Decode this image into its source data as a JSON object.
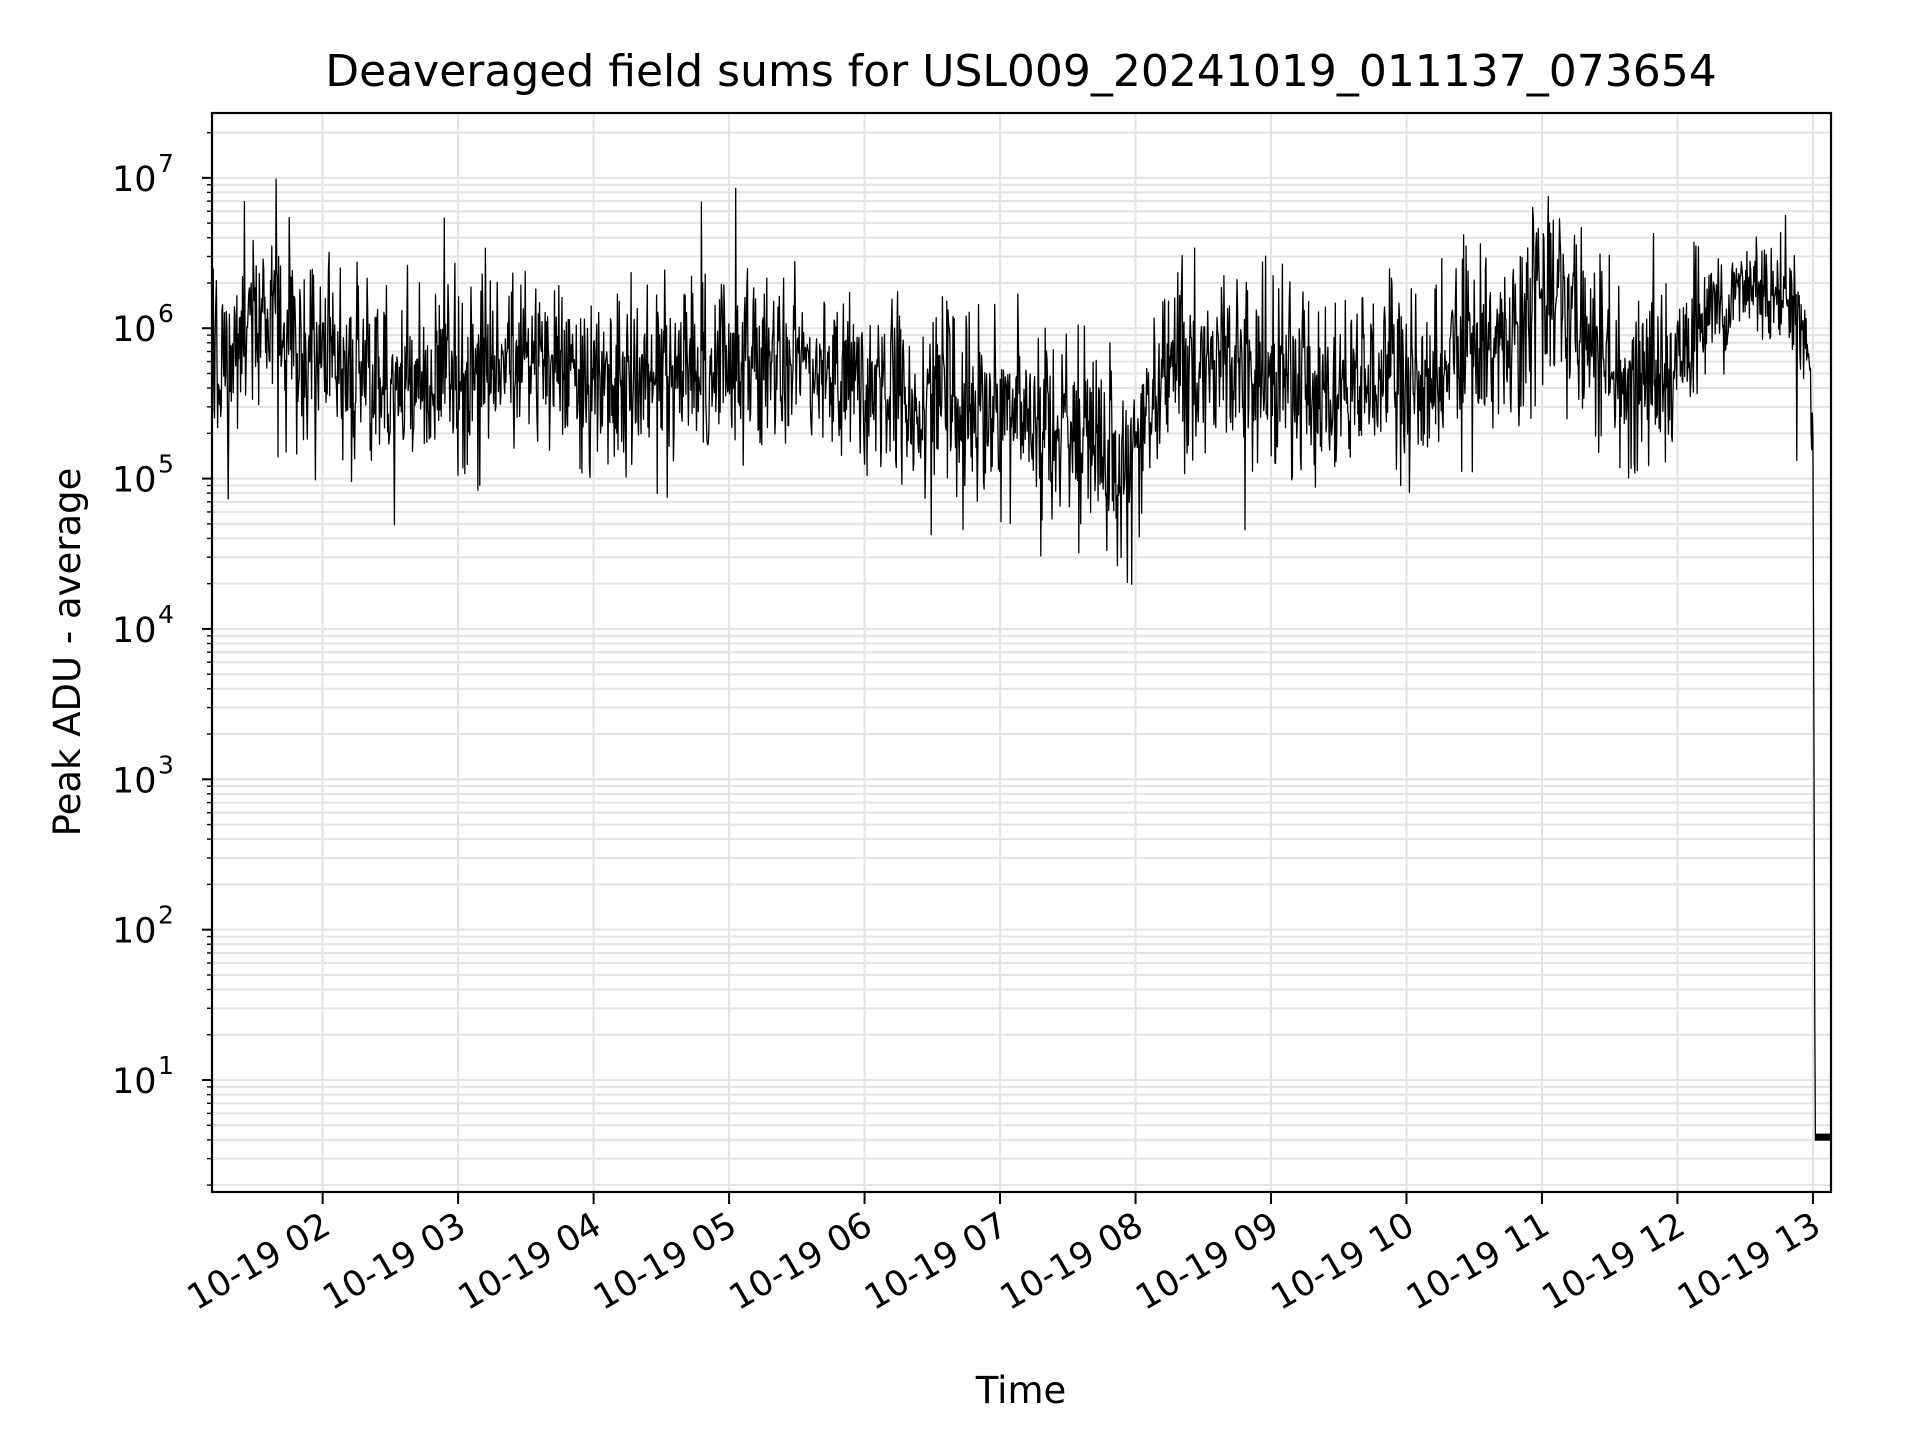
{
  "chart_data": {
    "type": "line",
    "title": "Deaveraged field sums for USL009_20241019_011137_073654",
    "xlabel": "Time",
    "ylabel": "Peak ADU - average",
    "yscale": "log",
    "ylim": [
      1.8,
      27000000
    ],
    "xlim": [
      "2024-10-19 01:11",
      "2024-10-19 13:08"
    ],
    "grid": true,
    "x_ticks": [
      "10-19 02",
      "10-19 03",
      "10-19 04",
      "10-19 05",
      "10-19 06",
      "10-19 07",
      "10-19 08",
      "10-19 09",
      "10-19 10",
      "10-19 11",
      "10-19 12",
      "10-19 13"
    ],
    "y_ticks": [
      {
        "base": "10",
        "exp": "1",
        "value": 10
      },
      {
        "base": "10",
        "exp": "2",
        "value": 100
      },
      {
        "base": "10",
        "exp": "3",
        "value": 1000
      },
      {
        "base": "10",
        "exp": "4",
        "value": 10000
      },
      {
        "base": "10",
        "exp": "5",
        "value": 100000
      },
      {
        "base": "10",
        "exp": "6",
        "value": 1000000
      },
      {
        "base": "10",
        "exp": "7",
        "value": 10000000
      }
    ],
    "series": [
      {
        "color": "#000000",
        "x": [
          "2024-10-19 01:11",
          "2024-10-19 01:30",
          "2024-10-19 02:00",
          "2024-10-19 02:30",
          "2024-10-19 03:00",
          "2024-10-19 03:30",
          "2024-10-19 04:00",
          "2024-10-19 04:30",
          "2024-10-19 05:00",
          "2024-10-19 05:30",
          "2024-10-19 06:00",
          "2024-10-19 06:30",
          "2024-10-19 07:00",
          "2024-10-19 07:30",
          "2024-10-19 08:00",
          "2024-10-19 08:15",
          "2024-10-19 08:30",
          "2024-10-19 09:00",
          "2024-10-19 09:30",
          "2024-10-19 10:00",
          "2024-10-19 10:30",
          "2024-10-19 10:55",
          "2024-10-19 11:05",
          "2024-10-19 11:30",
          "2024-10-19 11:55",
          "2024-10-19 12:15",
          "2024-10-19 12:35",
          "2024-10-19 12:50",
          "2024-10-19 12:57",
          "2024-10-19 13:00",
          "2024-10-19 13:01",
          "2024-10-19 13:08"
        ],
        "y": [
          500000,
          1200000,
          700000,
          450000,
          500000,
          650000,
          450000,
          500000,
          600000,
          550000,
          450000,
          350000,
          280000,
          200000,
          130000,
          600000,
          650000,
          500000,
          400000,
          450000,
          700000,
          1100000,
          2000000,
          450000,
          500000,
          1300000,
          2000000,
          1700000,
          900000,
          200000,
          4,
          4
        ]
      }
    ]
  }
}
